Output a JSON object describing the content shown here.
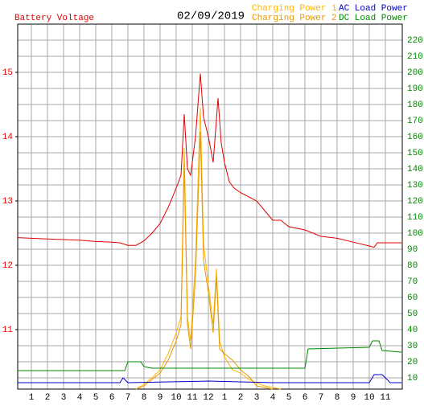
{
  "chart_data": {
    "type": "line",
    "title": "02/09/2019",
    "ylabel": "Battery Voltage",
    "xlim": [
      0.15,
      24.05
    ],
    "xticks": [
      1,
      2,
      3,
      4,
      5,
      6,
      7,
      8,
      9,
      10,
      11,
      12,
      {
        "value": 13,
        "label": "1"
      },
      {
        "value": 14,
        "label": "2"
      },
      {
        "value": 15,
        "label": "3"
      },
      {
        "value": 16,
        "label": "4"
      },
      {
        "value": 17,
        "label": "5"
      },
      {
        "value": 18,
        "label": "6"
      },
      {
        "value": 19,
        "label": "7"
      },
      {
        "value": 20,
        "label": "8"
      },
      {
        "value": 21,
        "label": "9"
      },
      {
        "value": 22,
        "label": "10"
      },
      {
        "value": 23,
        "label": "11"
      }
    ],
    "ylim": [
      10.075,
      15.75
    ],
    "yticks": [
      11,
      12,
      13,
      14,
      15
    ],
    "y2lim": [
      3,
      230
    ],
    "y2ticks": [
      10,
      20,
      30,
      40,
      50,
      60,
      70,
      80,
      90,
      100,
      110,
      120,
      130,
      140,
      150,
      160,
      170,
      180,
      190,
      200,
      210,
      220
    ],
    "grid": true,
    "series": [
      {
        "name": "Battery Voltage",
        "color": "#e00000",
        "axis": "y",
        "x": [
          0.15,
          1,
          2,
          3,
          4,
          5,
          6,
          6.5,
          7,
          7.5,
          8,
          8.5,
          9,
          9.5,
          10,
          10.3,
          10.5,
          10.7,
          10.9,
          11.2,
          11.5,
          11.7,
          12,
          12.3,
          12.6,
          12.8,
          13,
          13.3,
          13.6,
          14,
          15,
          15.5,
          16,
          16.5,
          17,
          18,
          19,
          20,
          21,
          22,
          22.3,
          22.5,
          23,
          24
        ],
        "values": [
          12.43,
          12.42,
          12.41,
          12.4,
          12.39,
          12.37,
          12.36,
          12.35,
          12.31,
          12.31,
          12.38,
          12.5,
          12.65,
          12.9,
          13.2,
          13.4,
          14.35,
          13.5,
          13.4,
          14.0,
          14.98,
          14.3,
          14.0,
          13.6,
          14.6,
          13.9,
          13.6,
          13.3,
          13.2,
          13.13,
          13.0,
          12.85,
          12.7,
          12.7,
          12.6,
          12.55,
          12.45,
          12.42,
          12.36,
          12.3,
          12.28,
          12.35,
          12.35,
          12.35
        ]
      },
      {
        "name": "Charging Power 1",
        "color": "#ffb400",
        "axis": "y2",
        "x": [
          7.5,
          8,
          8.5,
          9,
          9.5,
          10,
          10.3,
          10.5,
          10.7,
          10.9,
          11.2,
          11.5,
          11.7,
          12,
          12.3,
          12.5,
          12.7,
          13,
          13.5,
          14,
          14.5,
          15,
          15.5,
          16,
          16.5
        ],
        "values": [
          3,
          6,
          10,
          15,
          25,
          38,
          48,
          153,
          48,
          33,
          83,
          178,
          93,
          68,
          43,
          78,
          33,
          23,
          15,
          13,
          9,
          7,
          5,
          4,
          3
        ]
      },
      {
        "name": "Charging Power 2",
        "color": "#e69a00",
        "axis": "y2",
        "x": [
          7.5,
          8,
          8.5,
          9,
          9.5,
          10,
          10.3,
          10.5,
          10.7,
          10.9,
          11.2,
          11.5,
          11.7,
          12,
          12.3,
          12.5,
          12.7,
          13,
          13.5,
          14,
          14.5,
          15,
          15.5,
          16
        ],
        "values": [
          3,
          5,
          9,
          13,
          21,
          33,
          43,
          143,
          43,
          28,
          73,
          163,
          83,
          63,
          38,
          73,
          28,
          25,
          21,
          15,
          11,
          5,
          4,
          3
        ]
      },
      {
        "name": "AC Load Power",
        "color": "#0000cc",
        "axis": "y2",
        "x": [
          0.15,
          3,
          6.5,
          6.7,
          7,
          12,
          16,
          18,
          21,
          22,
          22.3,
          22.8,
          23.3,
          24
        ],
        "values": [
          7,
          7,
          7,
          10,
          7,
          8,
          7,
          7,
          7,
          7,
          12,
          12,
          7,
          7
        ]
      },
      {
        "name": "DC Load Power",
        "color": "#008800",
        "axis": "y2",
        "x": [
          0.15,
          6.8,
          7,
          7.8,
          8,
          8.5,
          18,
          18.2,
          22,
          22.2,
          22.6,
          22.8,
          24
        ],
        "values": [
          14.5,
          14.5,
          20,
          20,
          17,
          16,
          16,
          28,
          29,
          33,
          33,
          27,
          26
        ]
      }
    ]
  }
}
